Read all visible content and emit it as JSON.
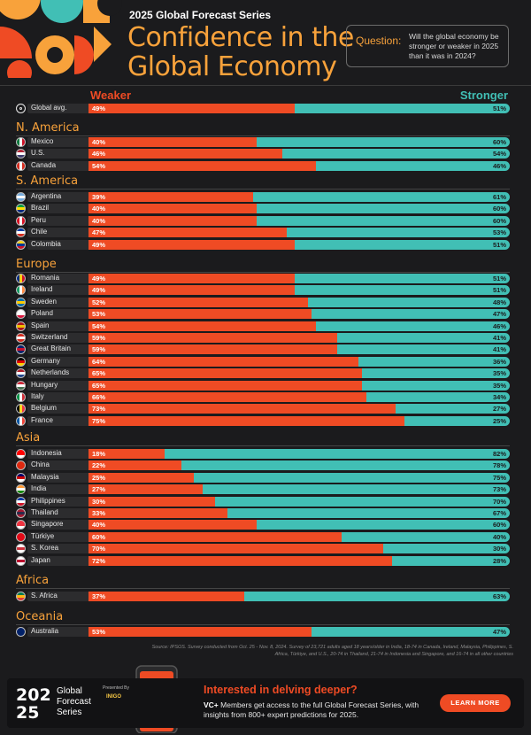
{
  "header": {
    "series_label": "2025 Global Forecast Series",
    "title_line1": "Confidence in the",
    "title_line2": "Global Economy",
    "question_label": "Question:",
    "question_text": "Will the global economy be stronger or weaker in 2025 than it was in 2024?",
    "weaker_label": "Weaker",
    "stronger_label": "Stronger"
  },
  "colors": {
    "weaker": "#ef4b24",
    "stronger": "#41bfb5",
    "accent": "#f8a23b",
    "background": "#1b1b1d"
  },
  "chart_data": {
    "type": "bar",
    "orientation": "horizontal",
    "stacked": true,
    "xlim": [
      0,
      100
    ],
    "series": [
      {
        "name": "Weaker"
      },
      {
        "name": "Stronger"
      }
    ],
    "groups": [
      {
        "region": "",
        "rows": [
          {
            "country": "Global avg.",
            "flag": "globe-icon",
            "weaker": 49,
            "stronger": 51
          }
        ]
      },
      {
        "region": "N. America",
        "rows": [
          {
            "country": "Mexico",
            "flag": "mexico-flag-icon",
            "weaker": 40,
            "stronger": 60
          },
          {
            "country": "U.S.",
            "flag": "us-flag-icon",
            "weaker": 46,
            "stronger": 54
          },
          {
            "country": "Canada",
            "flag": "canada-flag-icon",
            "weaker": 54,
            "stronger": 46
          }
        ]
      },
      {
        "region": "S. America",
        "rows": [
          {
            "country": "Argentina",
            "flag": "argentina-flag-icon",
            "weaker": 39,
            "stronger": 61
          },
          {
            "country": "Brazil",
            "flag": "brazil-flag-icon",
            "weaker": 40,
            "stronger": 60
          },
          {
            "country": "Peru",
            "flag": "peru-flag-icon",
            "weaker": 40,
            "stronger": 60
          },
          {
            "country": "Chile",
            "flag": "chile-flag-icon",
            "weaker": 47,
            "stronger": 53
          },
          {
            "country": "Colombia",
            "flag": "colombia-flag-icon",
            "weaker": 49,
            "stronger": 51
          }
        ]
      },
      {
        "region": "Europe",
        "rows": [
          {
            "country": "Romania",
            "flag": "romania-flag-icon",
            "weaker": 49,
            "stronger": 51
          },
          {
            "country": "Ireland",
            "flag": "ireland-flag-icon",
            "weaker": 49,
            "stronger": 51
          },
          {
            "country": "Sweden",
            "flag": "sweden-flag-icon",
            "weaker": 52,
            "stronger": 48
          },
          {
            "country": "Poland",
            "flag": "poland-flag-icon",
            "weaker": 53,
            "stronger": 47
          },
          {
            "country": "Spain",
            "flag": "spain-flag-icon",
            "weaker": 54,
            "stronger": 46
          },
          {
            "country": "Switzerland",
            "flag": "switzerland-flag-icon",
            "weaker": 59,
            "stronger": 41
          },
          {
            "country": "Great Britain",
            "flag": "great-britain-flag-icon",
            "weaker": 59,
            "stronger": 41
          },
          {
            "country": "Germany",
            "flag": "germany-flag-icon",
            "weaker": 64,
            "stronger": 36
          },
          {
            "country": "Netherlands",
            "flag": "netherlands-flag-icon",
            "weaker": 65,
            "stronger": 35
          },
          {
            "country": "Hungary",
            "flag": "hungary-flag-icon",
            "weaker": 65,
            "stronger": 35
          },
          {
            "country": "Italy",
            "flag": "italy-flag-icon",
            "weaker": 66,
            "stronger": 34
          },
          {
            "country": "Belgium",
            "flag": "belgium-flag-icon",
            "weaker": 73,
            "stronger": 27
          },
          {
            "country": "France",
            "flag": "france-flag-icon",
            "weaker": 75,
            "stronger": 25
          }
        ]
      },
      {
        "region": "Asia",
        "rows": [
          {
            "country": "Indonesia",
            "flag": "indonesia-flag-icon",
            "weaker": 18,
            "stronger": 82
          },
          {
            "country": "China",
            "flag": "china-flag-icon",
            "weaker": 22,
            "stronger": 78
          },
          {
            "country": "Malaysia",
            "flag": "malaysia-flag-icon",
            "weaker": 25,
            "stronger": 75
          },
          {
            "country": "India",
            "flag": "india-flag-icon",
            "weaker": 27,
            "stronger": 73
          },
          {
            "country": "Philippines",
            "flag": "philippines-flag-icon",
            "weaker": 30,
            "stronger": 70
          },
          {
            "country": "Thailand",
            "flag": "thailand-flag-icon",
            "weaker": 33,
            "stronger": 67
          },
          {
            "country": "Singapore",
            "flag": "singapore-flag-icon",
            "weaker": 40,
            "stronger": 60
          },
          {
            "country": "Türkiye",
            "flag": "turkiye-flag-icon",
            "weaker": 60,
            "stronger": 40
          },
          {
            "country": "S. Korea",
            "flag": "south-korea-flag-icon",
            "weaker": 70,
            "stronger": 30
          },
          {
            "country": "Japan",
            "flag": "japan-flag-icon",
            "weaker": 72,
            "stronger": 28
          }
        ]
      },
      {
        "region": "Africa",
        "rows": [
          {
            "country": "S. Africa",
            "flag": "south-africa-flag-icon",
            "weaker": 37,
            "stronger": 63
          }
        ]
      },
      {
        "region": "Oceania",
        "rows": [
          {
            "country": "Australia",
            "flag": "australia-flag-icon",
            "weaker": 53,
            "stronger": 47
          }
        ]
      }
    ]
  },
  "source": "Source: IPSOS. Survey conducted from Oct. 25 - Nov. 8, 2024. Survey of 23,721 adults aged 18 years/older in India, 18-74 in Canada, Ireland, Malaysia, Philippines, S. Africa, Türkiye, and U.S., 20-74 in Thailand, 21-74 in Indonesia and Singapore, and 16-74 in all other countries",
  "footer": {
    "logo_text": "2025",
    "series_line1": "Global",
    "series_line2": "Forecast",
    "series_line3": "Series",
    "presented_by": "Presented By",
    "sponsor": "INIGO",
    "cta_title": "Interested in delving deeper?",
    "vc_mark": "VC+",
    "desc": "Members get access to the full Global Forecast Series, with insights from 800+ expert predictions for 2025.",
    "learn_more": "LEARN MORE"
  }
}
